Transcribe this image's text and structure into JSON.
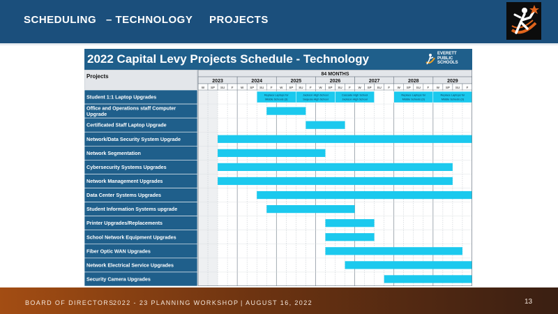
{
  "slide": {
    "titles": [
      "SCHEDULING",
      "– TECHNOLOGY",
      "PROJECTS"
    ],
    "logo_icon": "star-figure-logo",
    "footer": {
      "org": "BOARD OF DIRECTORS",
      "event": "2022 - 23 PLANNING WORKSHOP",
      "date": "| AUGUST 16, 2022",
      "page": "13"
    }
  },
  "chart_data": {
    "type": "gantt",
    "title": "2022 Capital Levy Projects Schedule - Technology",
    "logo_text": [
      "EVERETT",
      "PUBLIC",
      "SCHOOLS"
    ],
    "column_header": "Projects",
    "span_label": "84 MONTHS",
    "years": [
      "2023",
      "2024",
      "2025",
      "2026",
      "2027",
      "2028",
      "2029"
    ],
    "quarter_labels": [
      "W",
      "SP",
      "SU",
      "F"
    ],
    "x_range_quarters": [
      0,
      28
    ],
    "bar_color": "#1bc9ee",
    "label_bg": "#1f5f8b",
    "tasks": [
      {
        "name": "Student 1:1 Laptop Upgrades",
        "segments": [
          {
            "start": 6,
            "end": 10,
            "label": [
              "Replace Laptops for",
              "Middle Schools (3)"
            ]
          },
          {
            "start": 10,
            "end": 14,
            "label": [
              "Jackson High School",
              "Sequoia High School"
            ]
          },
          {
            "start": 14,
            "end": 18,
            "label": [
              "Cascade High School",
              "Jackson High School"
            ]
          },
          {
            "start": 20,
            "end": 24,
            "label": [
              "Replace Laptops for",
              "Middle Schools (3)"
            ]
          },
          {
            "start": 24,
            "end": 28,
            "label": [
              "Replace Laptops for",
              "Middle Schools (3)"
            ]
          }
        ]
      },
      {
        "name": "Office and Operations staff Computer Upgrade",
        "segments": [
          {
            "start": 7,
            "end": 11
          }
        ]
      },
      {
        "name": "Certificated Staff Laptop Upgrade",
        "segments": [
          {
            "start": 11,
            "end": 15
          }
        ]
      },
      {
        "name": "Network/Data Security System Upgrade",
        "segments": [
          {
            "start": 2,
            "end": 28
          }
        ]
      },
      {
        "name": "Network Segmentation",
        "segments": [
          {
            "start": 2,
            "end": 13
          }
        ]
      },
      {
        "name": "Cybersecurity Systems Upgrades",
        "segments": [
          {
            "start": 2,
            "end": 26
          }
        ]
      },
      {
        "name": "Network Management Upgrades",
        "segments": [
          {
            "start": 2,
            "end": 26
          }
        ]
      },
      {
        "name": "Data Center Systems Upgrades",
        "segments": [
          {
            "start": 6,
            "end": 28
          }
        ]
      },
      {
        "name": "Student Information Systems upgrade",
        "segments": [
          {
            "start": 7,
            "end": 16
          }
        ]
      },
      {
        "name": "Printer Upgrades/Replacements",
        "segments": [
          {
            "start": 13,
            "end": 18
          }
        ]
      },
      {
        "name": "School Network Equipment Upgrades",
        "segments": [
          {
            "start": 13,
            "end": 18
          }
        ]
      },
      {
        "name": "Fiber Optic WAN  Upgrades",
        "segments": [
          {
            "start": 13,
            "end": 27
          }
        ]
      },
      {
        "name": "Network Electrical Service Upgrades",
        "segments": [
          {
            "start": 15,
            "end": 28
          }
        ]
      },
      {
        "name": "Security Camera Upgrades",
        "segments": [
          {
            "start": 19,
            "end": 28
          }
        ]
      }
    ]
  }
}
